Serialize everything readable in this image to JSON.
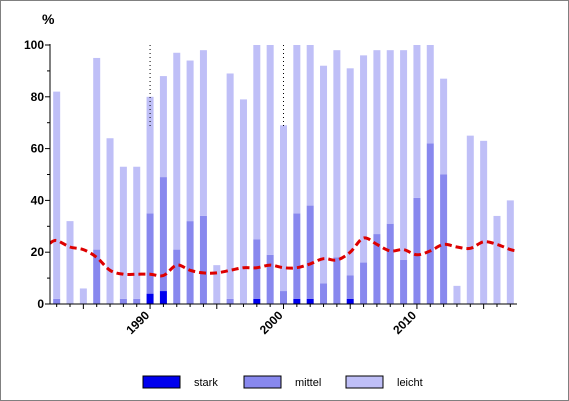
{
  "chart_data": {
    "type": "bar",
    "stacked": true,
    "unit_label": "%",
    "ylim": [
      0,
      100
    ],
    "y_ticks": [
      "0",
      "20",
      "40",
      "60",
      "80",
      "100"
    ],
    "x_tick_labels": [
      "1990",
      "2000",
      "2010"
    ],
    "x_tick_years": [
      1990,
      2000,
      2010
    ],
    "dotted_marker_years": [
      1990,
      2000
    ],
    "years": [
      1983,
      1984,
      1985,
      1986,
      1987,
      1988,
      1989,
      1990,
      1991,
      1992,
      1993,
      1994,
      1995,
      1996,
      1997,
      1998,
      1999,
      2000,
      2001,
      2002,
      2003,
      2004,
      2005,
      2006,
      2007,
      2008,
      2009,
      2010,
      2011,
      2012,
      2013,
      2014,
      2015,
      2016,
      2017
    ],
    "series": [
      {
        "name": "stark",
        "color": "#0000ee",
        "values": [
          0,
          0,
          0,
          0,
          0,
          0,
          0,
          4,
          5,
          0,
          0,
          0,
          0,
          0,
          0,
          2,
          0,
          0,
          2,
          2,
          0,
          0,
          2,
          0,
          0,
          0,
          0,
          0,
          0,
          0,
          0,
          0,
          0,
          0,
          0
        ]
      },
      {
        "name": "mittel",
        "color": "#8888ee",
        "values": [
          2,
          0,
          0,
          21,
          0,
          2,
          2,
          31,
          44,
          21,
          32,
          34,
          0,
          2,
          0,
          23,
          19,
          5,
          33,
          36,
          8,
          18,
          9,
          16,
          27,
          31,
          17,
          41,
          62,
          50,
          0,
          0,
          0,
          0,
          0
        ]
      },
      {
        "name": "leicht",
        "color": "#bfbff7",
        "values": [
          80,
          32,
          6,
          74,
          64,
          51,
          51,
          45,
          39,
          76,
          62,
          64,
          15,
          87,
          79,
          75,
          81,
          64,
          65,
          62,
          84,
          80,
          80,
          80,
          71,
          67,
          81,
          59,
          38,
          37,
          7,
          65,
          63,
          34,
          40
        ]
      }
    ],
    "trend_line": {
      "color": "#dd0000",
      "style": "dashed",
      "values": [
        23.5,
        24.5,
        22,
        21,
        18,
        13,
        11.5,
        11.5,
        11.5,
        11,
        15,
        13,
        12,
        12,
        13,
        14,
        14,
        15,
        14,
        14,
        15.5,
        17.5,
        17,
        20,
        25.5,
        23,
        20.5,
        21,
        19,
        20.5,
        23,
        22,
        21.5,
        24,
        23,
        21,
        20.5
      ]
    },
    "trend_years": [
      1982.5,
      1983,
      1984,
      1985,
      1986,
      1987,
      1988,
      1989,
      1990,
      1991,
      1992,
      1993,
      1994,
      1995,
      1996,
      1997,
      1998,
      1999,
      2000,
      2001,
      2002,
      2003,
      2004,
      2005,
      2006,
      2007,
      2008,
      2009,
      2010,
      2011,
      2012,
      2013,
      2014,
      2015,
      2016,
      2017,
      2017.5
    ],
    "legend": {
      "position": "bottom",
      "entries": [
        "stark",
        "mittel",
        "leicht"
      ]
    }
  }
}
